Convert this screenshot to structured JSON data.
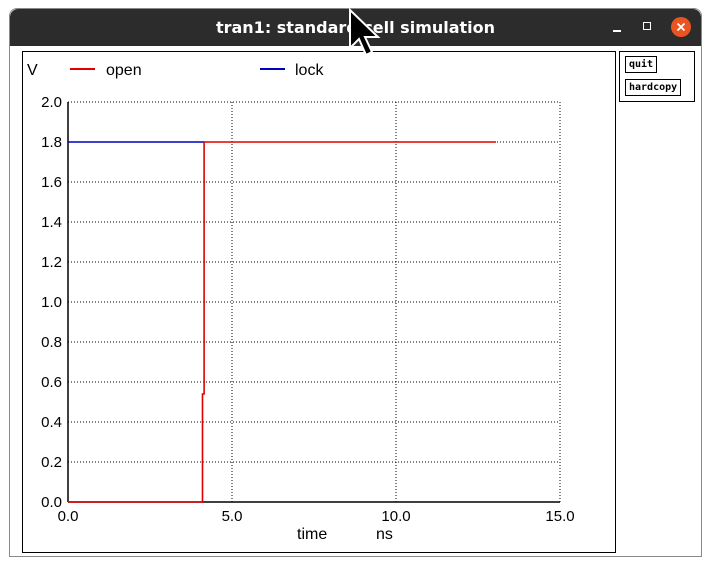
{
  "window": {
    "title": "tran1: standard cell simulation"
  },
  "buttons": {
    "quit": "quit",
    "hardcopy": "hardcopy"
  },
  "colors": {
    "open": "#e00000",
    "lock": "#0000c0",
    "close_button": "#e95420"
  },
  "chart_data": {
    "type": "line",
    "ylabel": "V",
    "xlabel": "time",
    "xunit": "ns",
    "xlim": [
      0,
      15
    ],
    "ylim": [
      0,
      2
    ],
    "x_ticks": [
      "0.0",
      "5.0",
      "10.0",
      "15.0"
    ],
    "y_ticks": [
      "0.0",
      "0.2",
      "0.4",
      "0.6",
      "0.8",
      "1.0",
      "1.2",
      "1.4",
      "1.6",
      "1.8",
      "2.0"
    ],
    "grid": true,
    "legend_position": "top",
    "series": [
      {
        "name": "open",
        "x": [
          0,
          4.1,
          4.1,
          4.15,
          4.15,
          13.05
        ],
        "y": [
          0,
          0,
          0.54,
          0.54,
          1.8,
          1.8
        ]
      },
      {
        "name": "lock",
        "x": [
          0,
          4.15
        ],
        "y": [
          1.8,
          1.8
        ]
      }
    ]
  }
}
